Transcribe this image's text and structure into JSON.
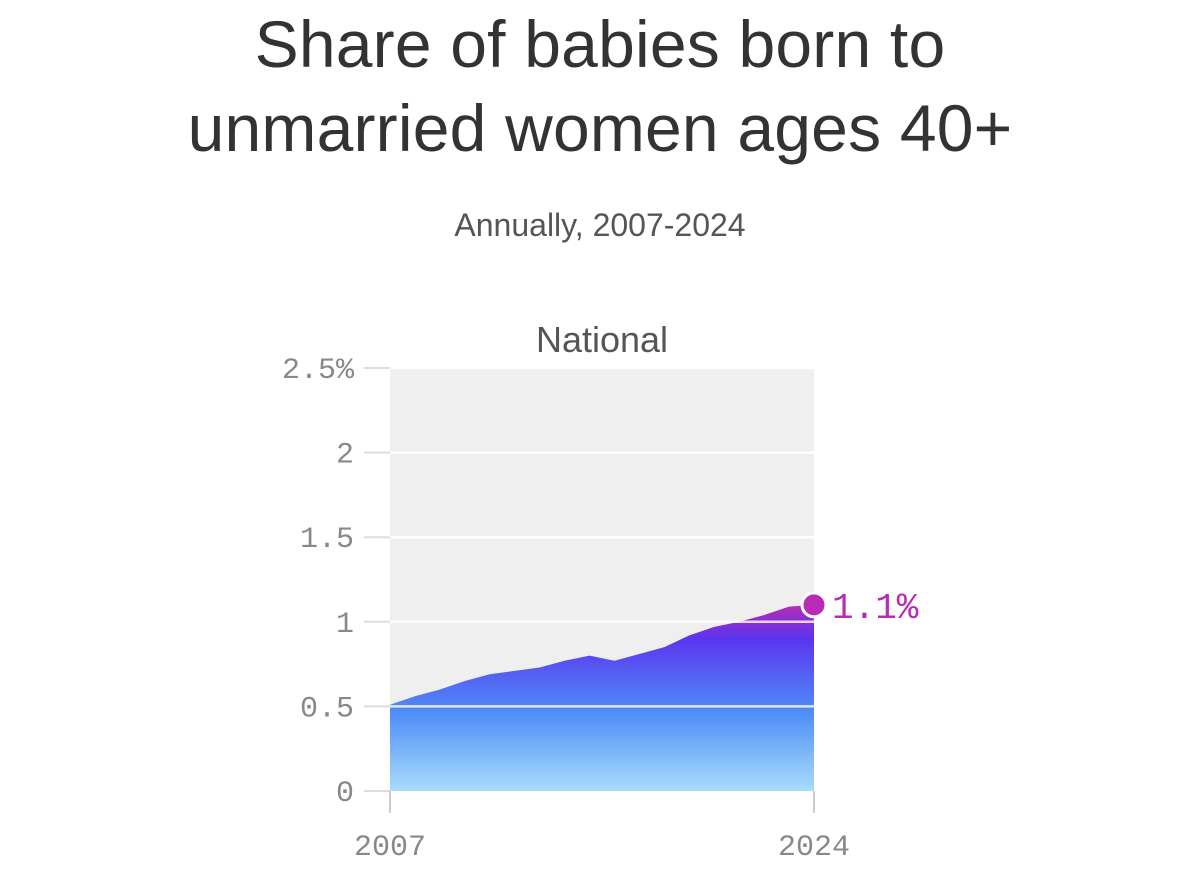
{
  "chart_data": {
    "type": "area",
    "title_lines": [
      "Share of babies born to",
      "unmarried women ages 40+"
    ],
    "subtitle": "Annually, 2007-2024",
    "facet_label": "National",
    "x": [
      2007,
      2008,
      2009,
      2010,
      2011,
      2012,
      2013,
      2014,
      2015,
      2016,
      2017,
      2018,
      2019,
      2020,
      2021,
      2022,
      2023,
      2024
    ],
    "series": [
      {
        "name": "National",
        "values": [
          0.51,
          0.56,
          0.6,
          0.65,
          0.69,
          0.71,
          0.73,
          0.77,
          0.8,
          0.77,
          0.81,
          0.85,
          0.92,
          0.97,
          1.0,
          1.04,
          1.09,
          1.1
        ]
      }
    ],
    "ylim": [
      0,
      2.5
    ],
    "y_ticks": [
      {
        "value": 0,
        "label": "0"
      },
      {
        "value": 0.5,
        "label": "0.5"
      },
      {
        "value": 1,
        "label": "1"
      },
      {
        "value": 1.5,
        "label": "1.5"
      },
      {
        "value": 2,
        "label": "2"
      },
      {
        "value": 2.5,
        "label": "2.5%"
      }
    ],
    "x_ticks": [
      {
        "value": 2007,
        "label": "2007"
      },
      {
        "value": 2024,
        "label": "2024"
      }
    ],
    "end_label": "1.1%",
    "colors": {
      "gradient_top": "#b72bb5",
      "gradient_mid": "#5a35ef",
      "gradient_low": "#4e8ef7",
      "gradient_bottom": "#a9dcfb",
      "panel_bg": "#efefef",
      "highlight": "#b72bb5"
    }
  }
}
